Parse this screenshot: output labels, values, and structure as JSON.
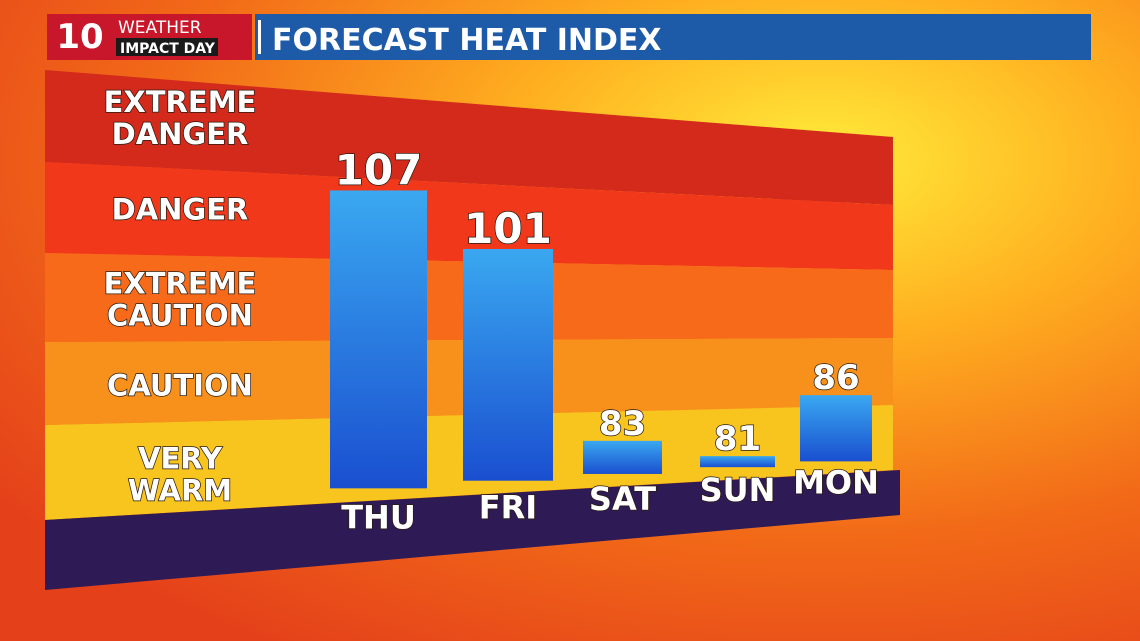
{
  "logo": {
    "number": "10",
    "line1": "WEATHER",
    "line2": "IMPACT DAY"
  },
  "chart_data": {
    "type": "bar",
    "title": "FORECAST HEAT INDEX",
    "categories": [
      "THU",
      "FRI",
      "SAT",
      "SUN",
      "MON"
    ],
    "values": [
      107,
      101,
      83,
      81,
      86
    ],
    "color": "#1e7fe0",
    "ylim": [
      80,
      110
    ],
    "bands": [
      {
        "lines": [
          "EXTREME",
          "DANGER"
        ],
        "color": "#d42a1c"
      },
      {
        "lines": [
          "DANGER"
        ],
        "color": "#f2381a"
      },
      {
        "lines": [
          "EXTREME",
          "CAUTION"
        ],
        "color": "#f66a1a"
      },
      {
        "lines": [
          "CAUTION"
        ],
        "color": "#f8901c"
      },
      {
        "lines": [
          "VERY",
          "WARM"
        ],
        "color": "#f7c51e"
      }
    ]
  }
}
